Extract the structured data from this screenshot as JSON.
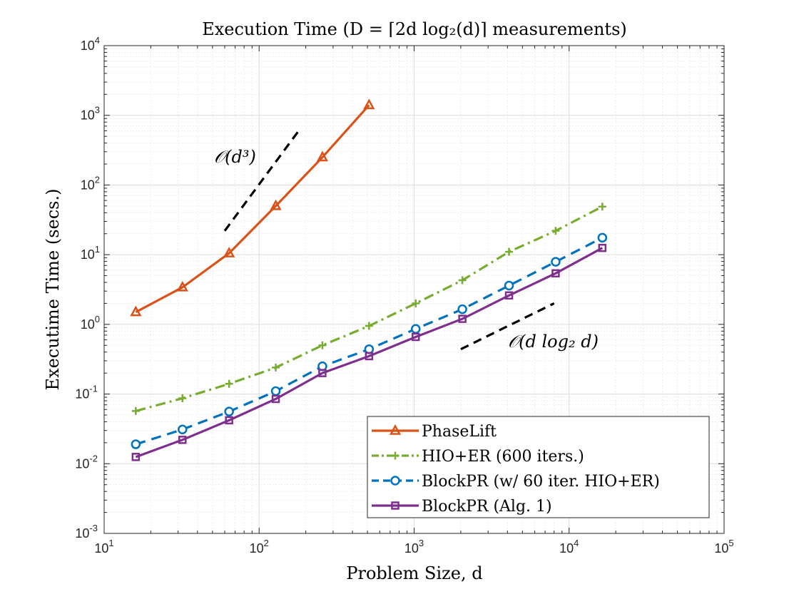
{
  "chart_data": {
    "type": "line",
    "title": "Execution Time (D = ⌈2d log₂(d)⌉ measurements)",
    "xlabel": "Problem Size, d",
    "ylabel": "Executime Time (secs.)",
    "xscale": "log",
    "yscale": "log",
    "xlim": [
      10,
      100000
    ],
    "ylim": [
      0.001,
      10000
    ],
    "grid": true,
    "legend_position": "bottom-right",
    "x_ticks": [
      {
        "base": "10",
        "exp": "1"
      },
      {
        "base": "10",
        "exp": "2"
      },
      {
        "base": "10",
        "exp": "3"
      },
      {
        "base": "10",
        "exp": "4"
      },
      {
        "base": "10",
        "exp": "5"
      }
    ],
    "y_ticks": [
      {
        "base": "10",
        "exp": "-3"
      },
      {
        "base": "10",
        "exp": "-2"
      },
      {
        "base": "10",
        "exp": "-1"
      },
      {
        "base": "10",
        "exp": "0"
      },
      {
        "base": "10",
        "exp": "1"
      },
      {
        "base": "10",
        "exp": "2"
      },
      {
        "base": "10",
        "exp": "3"
      },
      {
        "base": "10",
        "exp": "4"
      }
    ],
    "series": [
      {
        "name": "PhaseLift",
        "color": "#D95319",
        "marker": "triangle",
        "dash": "solid",
        "x": [
          16,
          32,
          64,
          128,
          256,
          512
        ],
        "y": [
          1.5,
          3.4,
          10.5,
          50,
          250,
          1400
        ]
      },
      {
        "name": "HIO+ER (600 iters.)",
        "color": "#77AC30",
        "marker": "plus",
        "dash": "dashdot",
        "x": [
          16,
          32,
          64,
          128,
          256,
          512,
          1024,
          2048,
          4096,
          8192,
          16384
        ],
        "y": [
          0.057,
          0.087,
          0.14,
          0.24,
          0.5,
          0.95,
          2.0,
          4.3,
          11,
          22,
          49
        ]
      },
      {
        "name": "BlockPR (w/ 60 iter. HIO+ER)",
        "color": "#0072BD",
        "marker": "circle",
        "dash": "dashed",
        "x": [
          16,
          32,
          64,
          128,
          256,
          512,
          1024,
          2048,
          4096,
          8192,
          16384
        ],
        "y": [
          0.019,
          0.031,
          0.056,
          0.11,
          0.25,
          0.44,
          0.86,
          1.65,
          3.6,
          7.9,
          17.5
        ]
      },
      {
        "name": "BlockPR (Alg. 1)",
        "color": "#7E2F8E",
        "marker": "square",
        "dash": "solid",
        "x": [
          16,
          32,
          64,
          128,
          256,
          512,
          1024,
          2048,
          4096,
          8192,
          16384
        ],
        "y": [
          0.0125,
          0.022,
          0.042,
          0.085,
          0.2,
          0.35,
          0.66,
          1.2,
          2.6,
          5.4,
          12.5
        ]
      }
    ],
    "reference_lines": [
      {
        "name": "O(d^3) reference",
        "label": "𝒪(d³)",
        "color": "#000000",
        "dash": "dashed",
        "x": [
          60,
          180
        ],
        "y": [
          22,
          600
        ]
      },
      {
        "name": "O(d log2 d) reference",
        "label": "𝒪(d log₂ d)",
        "color": "#000000",
        "dash": "dashed",
        "x": [
          2000,
          8000
        ],
        "y": [
          0.44,
          2.0
        ]
      }
    ]
  }
}
